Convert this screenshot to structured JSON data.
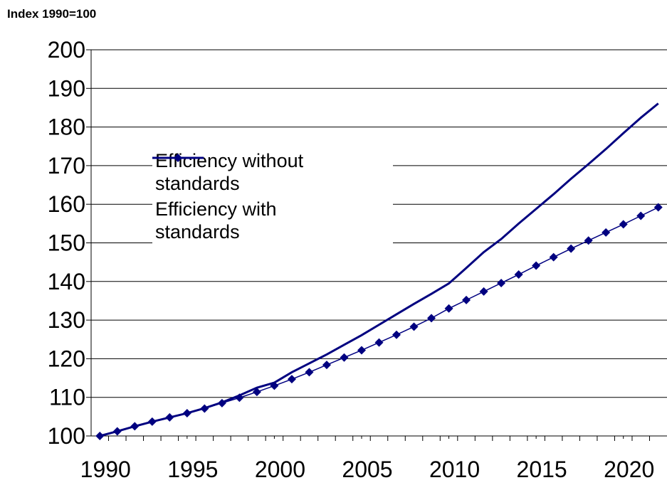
{
  "chart_data": {
    "type": "line",
    "y_label": "Index 1990=100",
    "x": [
      1990,
      1991,
      1992,
      1993,
      1994,
      1995,
      1996,
      1997,
      1998,
      1999,
      2000,
      2001,
      2002,
      2003,
      2004,
      2005,
      2006,
      2007,
      2008,
      2009,
      2010,
      2011,
      2012,
      2013,
      2014,
      2015,
      2016,
      2017,
      2018,
      2019,
      2020,
      2021,
      2022
    ],
    "series": [
      {
        "name": "Efficiency without standards",
        "color": "#000080",
        "marker": "diamond",
        "values": [
          100,
          101.2,
          102.5,
          103.7,
          104.8,
          105.9,
          107.1,
          108.5,
          109.9,
          111.4,
          113,
          114.7,
          116.5,
          118.4,
          120.3,
          122.2,
          124.2,
          126.2,
          128.3,
          130.5,
          133,
          135.2,
          137.4,
          139.6,
          141.8,
          144.1,
          146.3,
          148.5,
          150.6,
          152.7,
          154.8,
          157,
          159.2
        ]
      },
      {
        "name": "Efficiency with standards",
        "color": "#000080",
        "marker": "none",
        "values": [
          100,
          101.2,
          102.5,
          103.7,
          104.8,
          105.9,
          107.2,
          108.7,
          110.5,
          112.5,
          113.8,
          116.5,
          118.8,
          121.1,
          123.6,
          126.1,
          128.8,
          131.5,
          134.2,
          136.8,
          139.5,
          143.5,
          147.6,
          151,
          155,
          158.8,
          162.6,
          166.6,
          170.4,
          174.3,
          178.4,
          182.4,
          186.1
        ]
      }
    ],
    "xlim": [
      1989.5,
      2022.5
    ],
    "xticks": [
      1990,
      1995,
      2000,
      2005,
      2010,
      2015,
      2020
    ],
    "ylim": [
      100,
      200
    ],
    "yticks": [
      100,
      110,
      120,
      130,
      140,
      150,
      160,
      170,
      180,
      190,
      200
    ],
    "grid": true
  }
}
